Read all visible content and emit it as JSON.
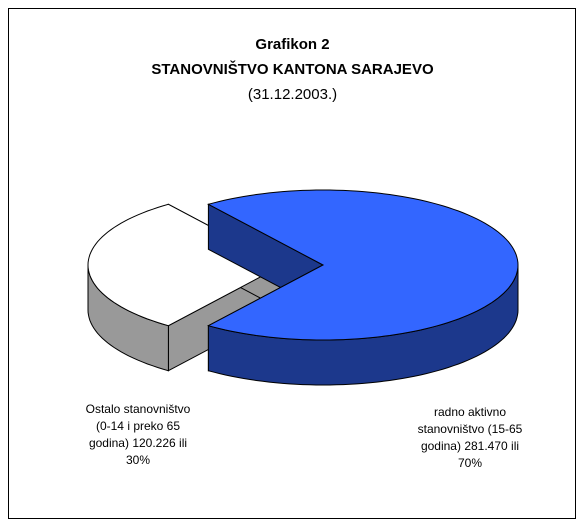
{
  "chart_data": {
    "type": "pie3d",
    "title": "Grafikon 2",
    "subtitle": "STANOVNIŠTVO KANTONA SARAJEVO",
    "date": "(31.12.2003.)",
    "categories": [
      "radno aktivno stanovništvo (15-65 godina)",
      "Ostalo stanovništvo (0-14 i preko 65 godina)"
    ],
    "counts": [
      281470,
      120226
    ],
    "count_labels": [
      "281.470",
      "120.226"
    ],
    "connector": "ili",
    "values": [
      70,
      30
    ],
    "value_labels": [
      "70%",
      "30%"
    ],
    "colors": [
      "#3366ff",
      "#ffffff"
    ]
  }
}
